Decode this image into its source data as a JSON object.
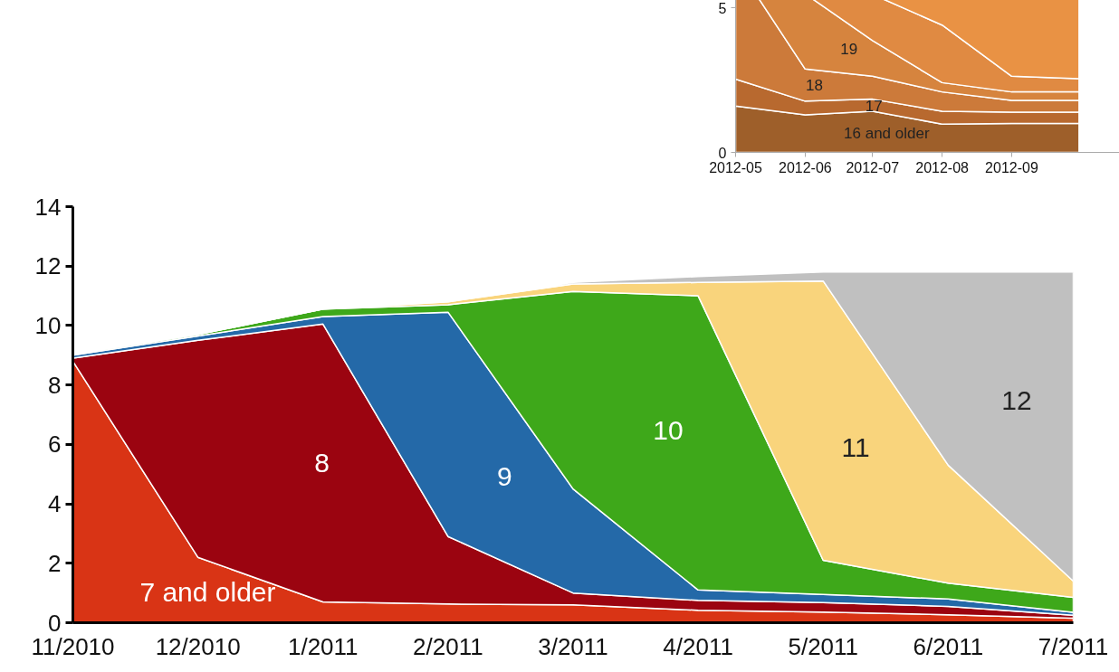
{
  "chart_data": [
    {
      "type": "area",
      "stacked": true,
      "categories": [
        "11/2010",
        "12/2010",
        "1/2011",
        "2/2011",
        "3/2011",
        "4/2011",
        "5/2011",
        "6/2011",
        "7/2011"
      ],
      "ylim": [
        0,
        14
      ],
      "yticks": [
        0,
        2,
        4,
        6,
        8,
        10,
        12,
        14
      ],
      "grid": false,
      "series": [
        {
          "name": "7 and older",
          "color": "#d93415",
          "values": [
            8.8,
            2.2,
            0.7,
            0.63,
            0.6,
            0.42,
            0.36,
            0.27,
            0.15
          ]
        },
        {
          "name": "8",
          "color": "#9b0410",
          "values": [
            0.1,
            7.3,
            9.35,
            2.27,
            0.4,
            0.33,
            0.32,
            0.28,
            0.1
          ]
        },
        {
          "name": "9",
          "color": "#2469a8",
          "values": [
            0.1,
            0.15,
            0.25,
            7.55,
            3.5,
            0.35,
            0.27,
            0.25,
            0.1
          ]
        },
        {
          "name": "10",
          "color": "#3ea81a",
          "values": [
            0.05,
            0.05,
            0.25,
            0.25,
            6.65,
            9.9,
            1.15,
            0.53,
            0.5
          ]
        },
        {
          "name": "11",
          "color": "#f9d47c",
          "values": [
            0,
            0,
            0,
            0.1,
            0.25,
            0.45,
            9.4,
            3.97,
            0.55
          ]
        },
        {
          "name": "12",
          "color": "#c0c0c0",
          "values": [
            0,
            0,
            0,
            0,
            0.05,
            0.2,
            0.3,
            6.5,
            10.4
          ]
        }
      ]
    },
    {
      "type": "area",
      "stacked": true,
      "x": [
        "2012-05",
        "2012-06",
        "2012-07",
        "2012-08",
        "2012-09",
        "2012-10"
      ],
      "xlim": [
        "2012-05",
        "2012-10-19"
      ],
      "xticks": [
        "2012-05",
        "2012-06",
        "2012-07",
        "2012-08",
        "2012-09"
      ],
      "ylim": [
        0,
        8.5
      ],
      "yticks": [
        0,
        5
      ],
      "grid": false,
      "series": [
        {
          "name": "16 and older",
          "color": "#9e5f2a",
          "values": [
            1.6,
            1.3,
            1.42,
            0.98,
            1.0,
            1.0
          ]
        },
        {
          "name": "17",
          "color": "#b8692f",
          "values": [
            0.93,
            0.47,
            0.42,
            0.44,
            0.39,
            0.39
          ]
        },
        {
          "name": "18",
          "color": "#cc7a3a",
          "values": [
            4.0,
            1.11,
            0.79,
            0.67,
            0.41,
            0.41
          ]
        },
        {
          "name": "19",
          "color": "#d6843e",
          "values": [
            0.5,
            2.6,
            1.23,
            0.32,
            0.29,
            0.29
          ]
        },
        {
          "color": "#e08a42",
          "values": [
            0.5,
            0.5,
            1.6,
            1.99,
            0.54,
            0.46
          ]
        },
        {
          "color": "#e99244",
          "values": [
            0.5,
            0.5,
            0.5,
            1.0,
            3.0,
            3.0
          ]
        }
      ]
    }
  ]
}
